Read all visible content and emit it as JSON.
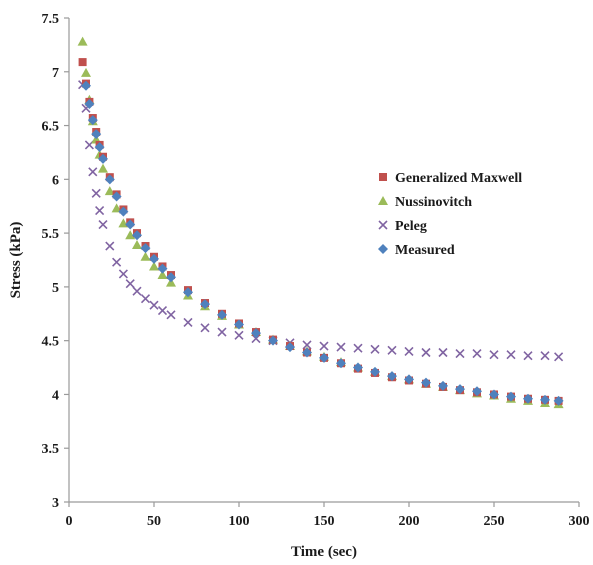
{
  "chart_data": {
    "type": "scatter",
    "xlabel": "Time (sec)",
    "ylabel": "Stress (kPa)",
    "xlim": [
      0,
      300
    ],
    "ylim": [
      3,
      7.5
    ],
    "xticks": [
      "0",
      "50",
      "100",
      "150",
      "200",
      "250",
      "300"
    ],
    "yticks": [
      "3",
      "3.5",
      "4",
      "4.5",
      "5",
      "5.5",
      "6",
      "6.5",
      "7",
      "7.5"
    ],
    "grid": false,
    "legend_position": "right",
    "series": [
      {
        "name": "Generalized Maxwell",
        "marker": "square",
        "color": "#c0504d",
        "x": [
          8,
          10,
          12,
          14,
          16,
          18,
          20,
          24,
          28,
          32,
          36,
          40,
          45,
          50,
          55,
          60,
          70,
          80,
          90,
          100,
          110,
          120,
          130,
          140,
          150,
          160,
          170,
          180,
          190,
          200,
          210,
          220,
          230,
          240,
          250,
          260,
          270,
          280,
          288
        ],
        "y": [
          7.09,
          6.89,
          6.72,
          6.57,
          6.44,
          6.32,
          6.21,
          6.02,
          5.86,
          5.72,
          5.6,
          5.5,
          5.38,
          5.28,
          5.19,
          5.11,
          4.97,
          4.85,
          4.75,
          4.66,
          4.58,
          4.51,
          4.45,
          4.39,
          4.34,
          4.29,
          4.24,
          4.2,
          4.16,
          4.13,
          4.1,
          4.07,
          4.04,
          4.02,
          4.0,
          3.98,
          3.96,
          3.95,
          3.94
        ]
      },
      {
        "name": "Nussinovitch",
        "marker": "triangle",
        "color": "#9bbb59",
        "x": [
          8,
          10,
          12,
          14,
          16,
          18,
          20,
          24,
          28,
          32,
          36,
          40,
          45,
          50,
          55,
          60,
          70,
          80,
          90,
          100,
          110,
          120,
          130,
          140,
          150,
          160,
          170,
          180,
          190,
          200,
          210,
          220,
          230,
          240,
          250,
          260,
          270,
          280,
          288
        ],
        "y": [
          7.28,
          6.99,
          6.74,
          6.54,
          6.37,
          6.23,
          6.1,
          5.89,
          5.73,
          5.59,
          5.48,
          5.39,
          5.28,
          5.19,
          5.11,
          5.04,
          4.92,
          4.82,
          4.73,
          4.65,
          4.58,
          4.51,
          4.45,
          4.4,
          4.35,
          4.3,
          4.25,
          4.21,
          4.17,
          4.14,
          4.1,
          4.07,
          4.04,
          4.01,
          3.99,
          3.96,
          3.94,
          3.92,
          3.91
        ]
      },
      {
        "name": "Peleg",
        "marker": "x",
        "color": "#8064a2",
        "x": [
          8,
          10,
          12,
          14,
          16,
          18,
          20,
          24,
          28,
          32,
          36,
          40,
          45,
          50,
          55,
          60,
          70,
          80,
          90,
          100,
          110,
          120,
          130,
          140,
          150,
          160,
          170,
          180,
          190,
          200,
          210,
          220,
          230,
          240,
          250,
          260,
          270,
          280,
          288
        ],
        "y": [
          6.88,
          6.66,
          6.32,
          6.07,
          5.87,
          5.71,
          5.58,
          5.38,
          5.23,
          5.12,
          5.03,
          4.96,
          4.89,
          4.83,
          4.78,
          4.74,
          4.67,
          4.62,
          4.58,
          4.55,
          4.52,
          4.5,
          4.48,
          4.46,
          4.45,
          4.44,
          4.43,
          4.42,
          4.41,
          4.4,
          4.39,
          4.39,
          4.38,
          4.38,
          4.37,
          4.37,
          4.36,
          4.36,
          4.35
        ]
      },
      {
        "name": "Measured",
        "marker": "diamond",
        "color": "#4f81bd",
        "x": [
          10,
          12,
          14,
          16,
          18,
          20,
          24,
          28,
          32,
          36,
          40,
          45,
          50,
          55,
          60,
          70,
          80,
          90,
          100,
          110,
          120,
          130,
          140,
          150,
          160,
          170,
          180,
          190,
          200,
          210,
          220,
          230,
          240,
          250,
          260,
          270,
          280,
          288
        ],
        "y": [
          6.87,
          6.7,
          6.55,
          6.42,
          6.3,
          6.19,
          6.0,
          5.84,
          5.7,
          5.58,
          5.48,
          5.36,
          5.26,
          5.17,
          5.09,
          4.95,
          4.84,
          4.74,
          4.65,
          4.57,
          4.5,
          4.44,
          4.39,
          4.34,
          4.29,
          4.25,
          4.21,
          4.17,
          4.14,
          4.11,
          4.08,
          4.05,
          4.03,
          4.0,
          3.98,
          3.96,
          3.95,
          3.94
        ]
      }
    ]
  }
}
